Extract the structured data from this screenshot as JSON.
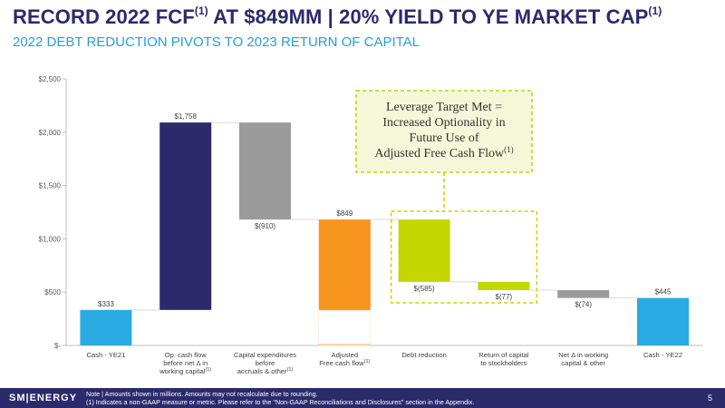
{
  "header": {
    "title_main": "RECORD 2022 FCF",
    "title_sup1": "(1)",
    "title_rest": " AT $849MM | 20% YIELD TO YE MARKET CAP",
    "title_sup2": "(1)",
    "subtitle": "2022 DEBT REDUCTION PIVOTS TO 2023 RETURN OF CAPITAL"
  },
  "chart_data": {
    "type": "waterfall",
    "ylim": [
      0,
      2500
    ],
    "ytick_values": [
      0,
      500,
      1000,
      1500,
      2000,
      2500
    ],
    "ytick_labels": [
      "$-",
      "$500",
      "$1,000",
      "$1,500",
      "$2,000",
      "$2,500"
    ],
    "grid": false,
    "bars": [
      {
        "category": "Cash - YE21",
        "base": 0,
        "top": 333,
        "value_label": "$333",
        "color": "#29abe2"
      },
      {
        "category": "Op. cash flow before net Δ in working capital(1)",
        "base": 333,
        "top": 2091,
        "value_label": "$1,758",
        "color": "#2b2a6b"
      },
      {
        "category": "Capital expenditures before accruals & other(1)",
        "base": 1181,
        "top": 2091,
        "value_label": "$(910)",
        "color": "#9b9b9b"
      },
      {
        "category": "Adjusted Free cash flow(1)",
        "base": 0,
        "top": 1181,
        "value_label": "$849",
        "color": "#f7941d",
        "split_at": 332
      },
      {
        "category": "Debt reduction",
        "base": 596,
        "top": 1181,
        "value_label": "$(585)",
        "color": "#c4d600"
      },
      {
        "category": "Return of capital to stockholders",
        "base": 519,
        "top": 596,
        "value_label": "$(77)",
        "color": "#c4d600"
      },
      {
        "category": "Net Δ in working capital & other",
        "base": 445,
        "top": 519,
        "value_label": "$(74)",
        "color": "#9b9b9b"
      },
      {
        "category": "Cash - YE22",
        "base": 0,
        "top": 445,
        "value_label": "$445",
        "color": "#29abe2"
      }
    ],
    "x_labels": [
      {
        "lines": [
          "Cash - YE21"
        ]
      },
      {
        "lines": [
          "Op. cash flow",
          "before net Δ in",
          "working capital"
        ],
        "sup": "(1)"
      },
      {
        "lines": [
          "Capital expenditures",
          "before",
          "accruals & other"
        ],
        "sup": "(1)"
      },
      {
        "lines": [
          "Adjusted",
          "Free cash flow"
        ],
        "sup": "(1)"
      },
      {
        "lines": [
          "Debt reduction"
        ]
      },
      {
        "lines": [
          "Return of capital",
          "to stockholders"
        ]
      },
      {
        "lines": [
          "Net Δ in working",
          "capital & other"
        ]
      },
      {
        "lines": [
          "Cash - YE22"
        ]
      }
    ],
    "callout": {
      "lines": [
        "Leverage Target Met =",
        "Increased Optionality in",
        "Future Use of",
        "Adjusted Free Cash Flow"
      ],
      "sup": "(1)",
      "fill": "#f4f8d9",
      "border": "#c4d600"
    }
  },
  "footer": {
    "logo": "SM|ENERGY",
    "note_line1": "Note | Amounts shown in millions. Amounts may not recalculate due to rounding.",
    "note_line2": "(1)   Indicates a non-GAAP measure or metric. Please refer to the \"Non-GAAP Reconciliations and Disclosures\" section in the Appendix.",
    "page_number": "5"
  }
}
